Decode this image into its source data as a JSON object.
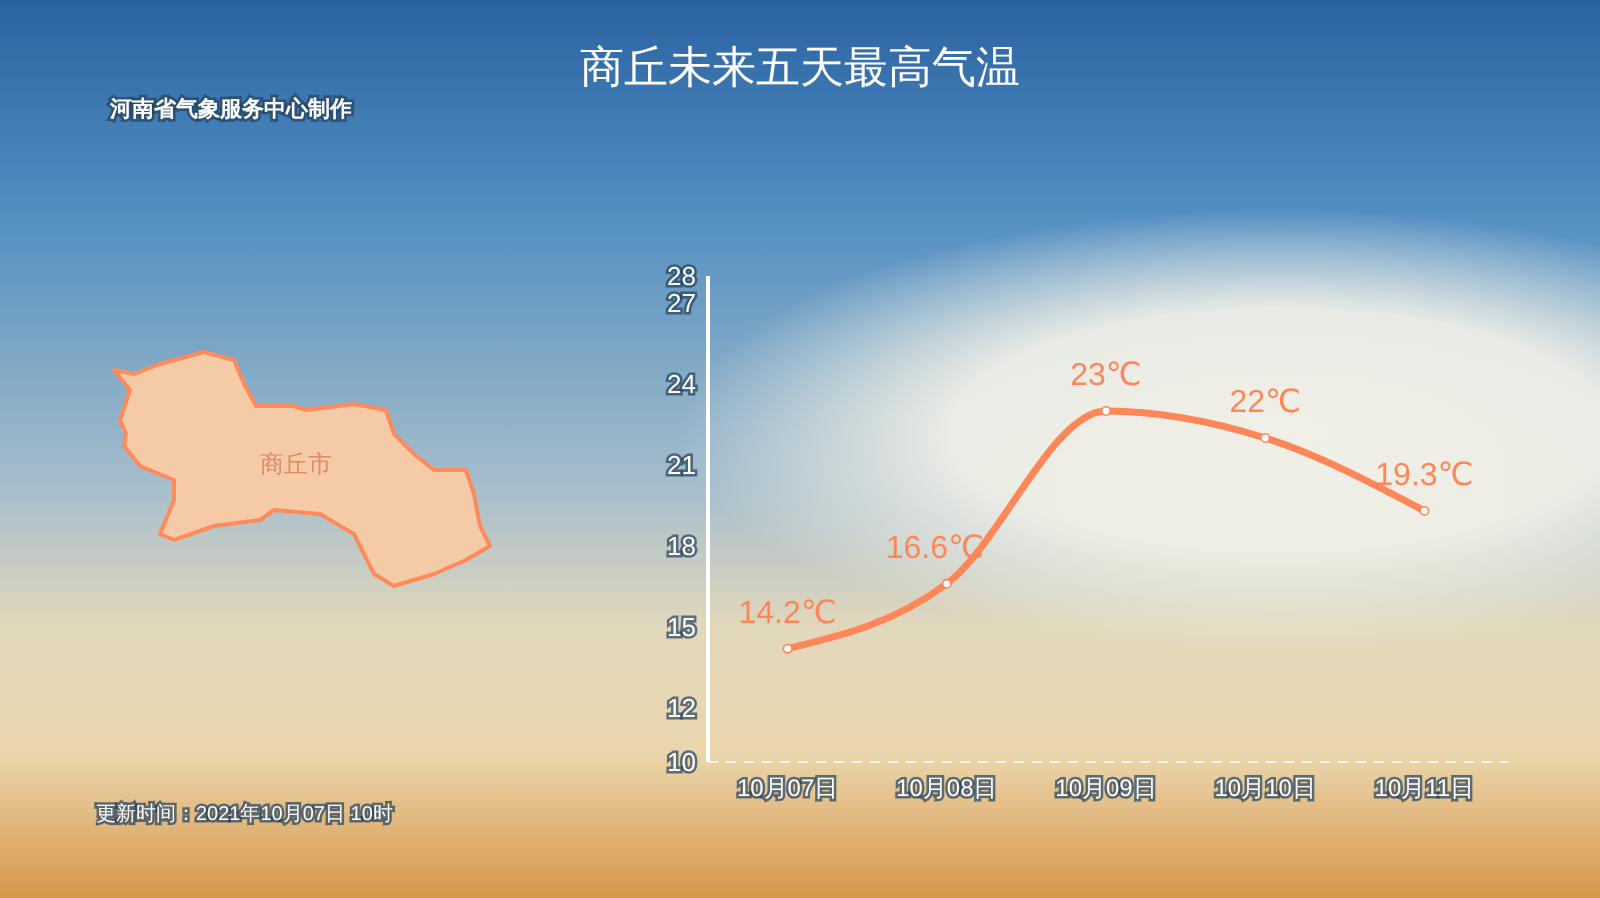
{
  "chart_data": {
    "type": "line",
    "title": "商丘未来五天最高气温",
    "categories": [
      "10月07日",
      "10月08日",
      "10月09日",
      "10月10日",
      "10月11日"
    ],
    "series": [
      {
        "color": "#ff8659",
        "values": [
          14.2,
          16.6,
          23,
          22,
          19.3
        ],
        "value_labels": [
          "14.2℃",
          "16.6℃",
          "23℃",
          "22℃",
          "19.3℃"
        ]
      }
    ],
    "ylim": [
      10,
      28
    ],
    "yticks": [
      10,
      12,
      15,
      18,
      21,
      24,
      27,
      28
    ],
    "marker": "circle",
    "line_style": "solid",
    "annotations": [
      "河南省气象服务中心制作",
      "商丘市",
      "更新时间：2021年10月07日 10时"
    ]
  }
}
